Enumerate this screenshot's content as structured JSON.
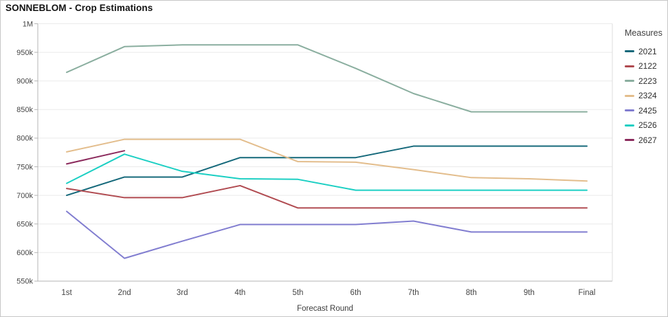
{
  "title": "SONNEBLOM - Crop Estimations",
  "legend": {
    "title": "Measures"
  },
  "chart_data": {
    "type": "line",
    "title": "SONNEBLOM - Crop Estimations",
    "xlabel": "Forecast Round",
    "ylabel": "",
    "categories": [
      "1st",
      "2nd",
      "3rd",
      "4th",
      "5th",
      "6th",
      "7th",
      "8th",
      "9th",
      "Final"
    ],
    "y_tick_labels": [
      "1M",
      "950k",
      "900k",
      "850k",
      "800k",
      "750k",
      "700k",
      "650k",
      "600k",
      "550k"
    ],
    "ylim": [
      550000,
      1000000
    ],
    "grid": "horizontal",
    "legend_position": "right",
    "legend_title": "Measures",
    "series": [
      {
        "name": "2021",
        "color": "#14687A",
        "values": [
          700000,
          732000,
          732000,
          766000,
          766000,
          766000,
          786000,
          786000,
          786000,
          786000
        ]
      },
      {
        "name": "2122",
        "color": "#B04A50",
        "values": [
          712000,
          696000,
          696000,
          717000,
          678000,
          678000,
          678000,
          678000,
          678000,
          678000
        ]
      },
      {
        "name": "2223",
        "color": "#8AAE9F",
        "values": [
          915000,
          960000,
          963000,
          963000,
          963000,
          922000,
          878000,
          846000,
          846000,
          846000
        ]
      },
      {
        "name": "2324",
        "color": "#E3BD8C",
        "values": [
          776000,
          798000,
          798000,
          798000,
          759000,
          758000,
          745000,
          731000,
          729000,
          725000
        ]
      },
      {
        "name": "2425",
        "color": "#817DD0",
        "values": [
          672000,
          590000,
          620000,
          649000,
          649000,
          649000,
          655000,
          636000,
          636000,
          636000
        ]
      },
      {
        "name": "2526",
        "color": "#1BCFC3",
        "values": [
          721000,
          772000,
          742000,
          729000,
          728000,
          709000,
          709000,
          709000,
          709000,
          709000
        ]
      },
      {
        "name": "2627",
        "color": "#8B2A5C",
        "values": [
          755000,
          778000,
          null,
          null,
          null,
          null,
          null,
          null,
          null,
          null
        ]
      }
    ]
  },
  "style": {
    "grid_color": "#EAEAEA",
    "axis_color": "#B5B5B5",
    "right_border_color": "#DDDDDD",
    "tick_label_color": "#454545",
    "axis_title_color": "#3D3D3D"
  }
}
